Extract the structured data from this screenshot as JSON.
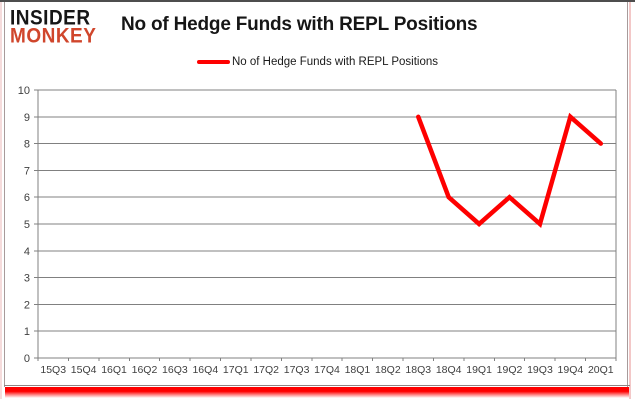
{
  "logo": {
    "line1": "INSIDER",
    "line2": "MONKEY"
  },
  "header": {
    "title": "No of Hedge Funds with REPL Positions"
  },
  "legend": {
    "label": "No of Hedge Funds with REPL Positions"
  },
  "colors": {
    "line": "#fe0000",
    "grid": "#808080",
    "axis_text": "#3f3f3f",
    "title_text": "#161616",
    "logo_accent": "#d0462c",
    "bottom_bar": "#fe0000",
    "frame_border": "#a89b9b"
  },
  "chart_data": {
    "type": "line",
    "title": "No of Hedge Funds with REPL Positions",
    "categories": [
      "15Q3",
      "15Q4",
      "16Q1",
      "16Q2",
      "16Q3",
      "16Q4",
      "17Q1",
      "17Q2",
      "17Q3",
      "17Q4",
      "18Q1",
      "18Q2",
      "18Q3",
      "18Q4",
      "19Q1",
      "19Q2",
      "19Q3",
      "19Q4",
      "20Q1"
    ],
    "series": [
      {
        "name": "No of Hedge Funds with REPL Positions",
        "color": "#fe0000",
        "values": [
          null,
          null,
          null,
          null,
          null,
          null,
          null,
          null,
          null,
          null,
          null,
          null,
          9,
          6,
          5,
          6,
          5,
          9,
          8
        ]
      }
    ],
    "xlabel": "",
    "ylabel": "",
    "ylim": [
      0,
      10
    ],
    "yticks": [
      0,
      1,
      2,
      3,
      4,
      5,
      6,
      7,
      8,
      9,
      10
    ],
    "grid": "horizontal",
    "legend_position": "top-center"
  }
}
